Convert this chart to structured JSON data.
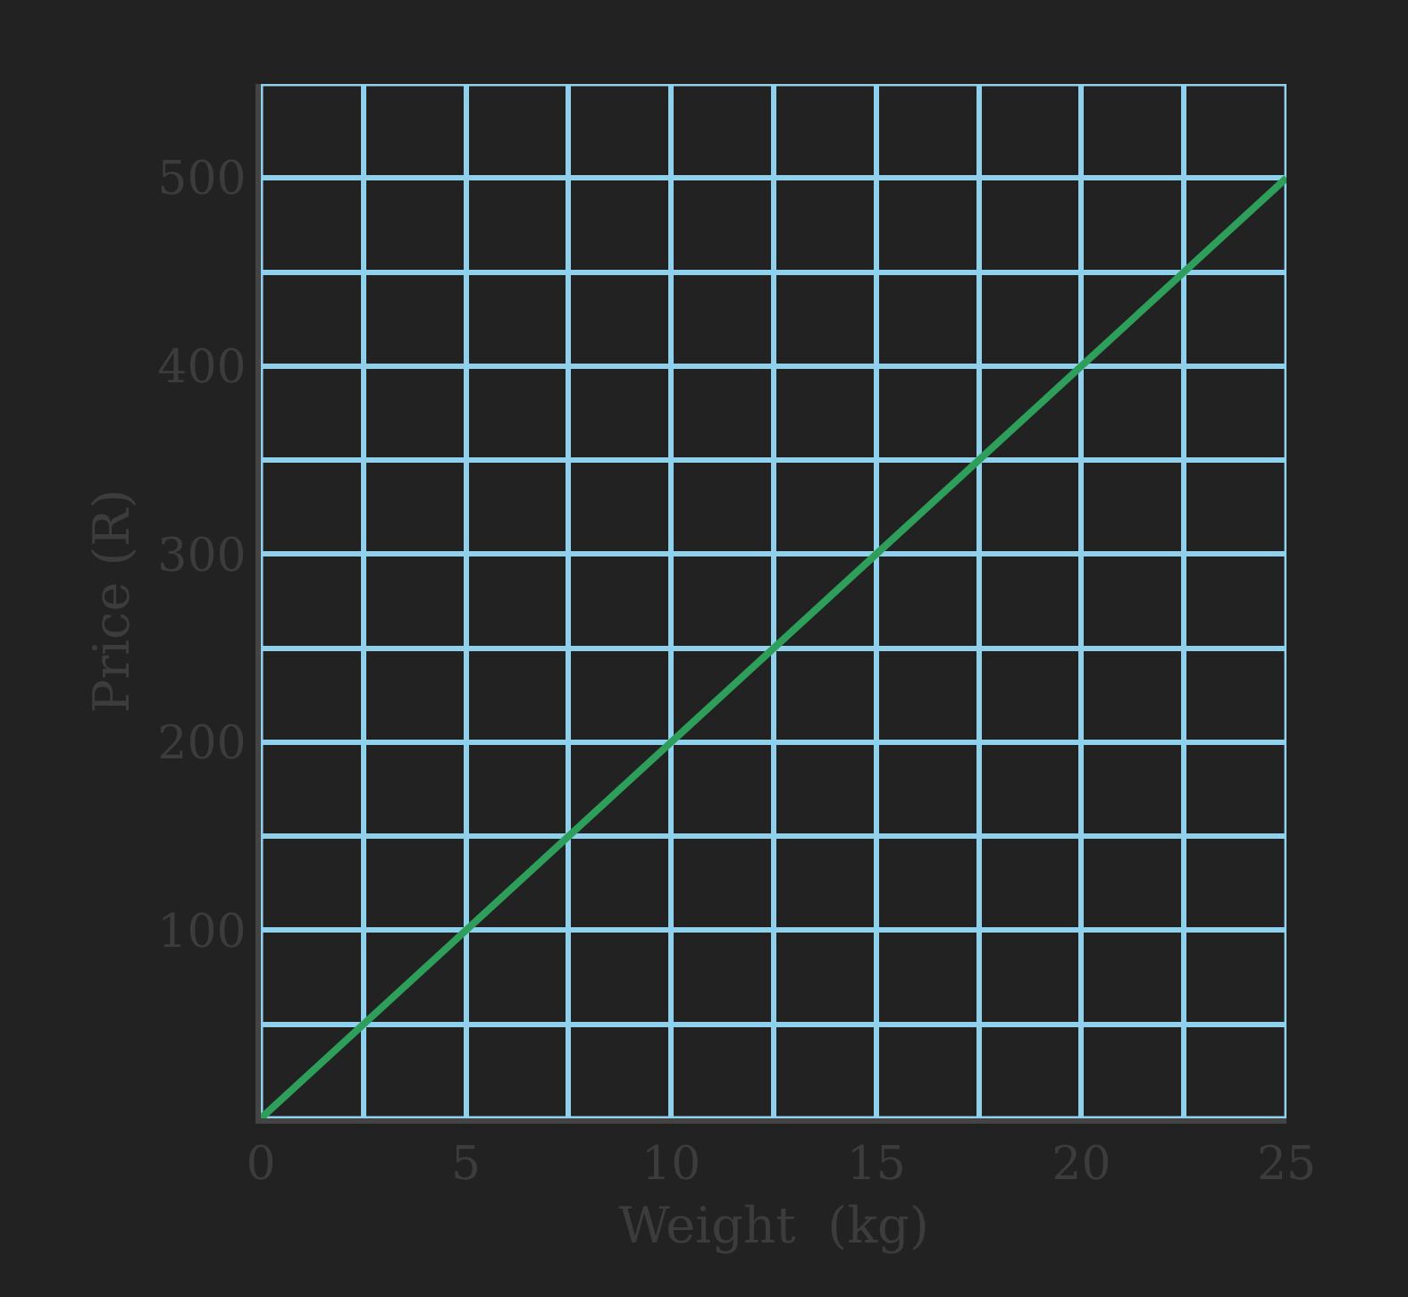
{
  "chart_data": {
    "type": "line",
    "xlabel": "Weight  (kg)",
    "ylabel": "Price (R)",
    "x": [
      0,
      25
    ],
    "series": [
      {
        "color": "#2e9e5b",
        "values": [
          0,
          500
        ]
      }
    ],
    "xlim": [
      0,
      25
    ],
    "ylim": [
      0,
      550
    ],
    "xticks": [
      0,
      {
        "value": 2.5,
        "label": null
      },
      5,
      {
        "value": 7.5,
        "label": null
      },
      10,
      {
        "value": 12.5,
        "label": null
      },
      15,
      {
        "value": 17.5,
        "label": null
      },
      20,
      {
        "value": 22.5,
        "label": null
      },
      25
    ],
    "yticks": [
      {
        "value": 50,
        "label": null
      },
      100,
      {
        "value": 150,
        "label": null
      },
      200,
      {
        "value": 250,
        "label": null
      },
      300,
      {
        "value": 350,
        "label": null
      },
      400,
      {
        "value": 450,
        "label": null
      },
      500,
      {
        "value": 550,
        "label": null
      }
    ],
    "grid": true,
    "marker": "none",
    "line_style": "solid"
  }
}
